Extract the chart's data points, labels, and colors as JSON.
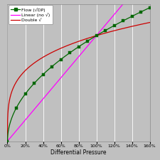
{
  "title": "",
  "xlabel": "Differential Pressure",
  "ylabel": "",
  "bg_color": "#c0c0c0",
  "plot_bg_color": "#c0c0c0",
  "grid_color": "#ffffff",
  "x_max_pct": 160,
  "y_max": 1.3,
  "legend_labels": [
    "Flow (√DP)",
    "Linear (no √)",
    "Double √"
  ],
  "flow_color": "#006600",
  "linear_color": "#ff00ff",
  "double_sqrt_color": "#cc0000",
  "tick_pcts": [
    0,
    20,
    40,
    60,
    80,
    100,
    120,
    140,
    160
  ],
  "figsize": [
    2.25,
    2.25
  ],
  "dpi": 100
}
